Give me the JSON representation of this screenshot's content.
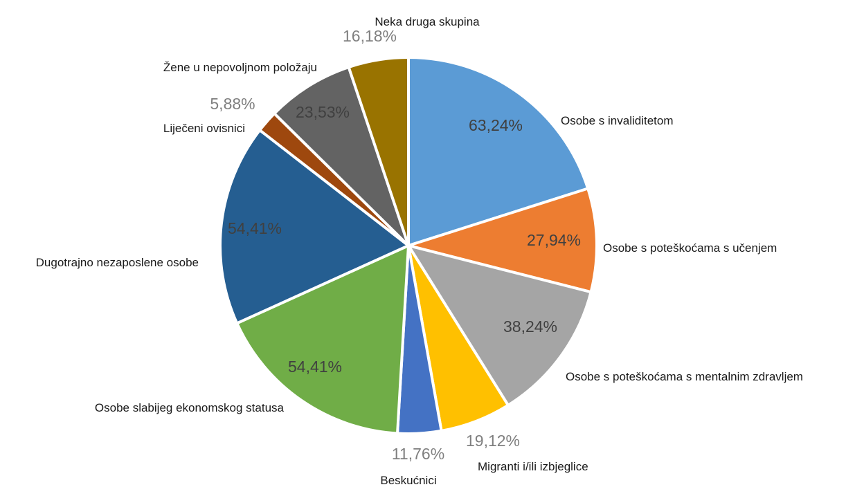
{
  "chart_data": {
    "type": "pie",
    "title": "",
    "slices": [
      {
        "label": "Osobe s invaliditetom",
        "value": 63.24,
        "display": "63,24%",
        "color": "#5b9bd5"
      },
      {
        "label": "Osobe s poteškoćama s učenjem",
        "value": 27.94,
        "display": "27,94%",
        "color": "#ed7d31"
      },
      {
        "label": "Osobe s poteškoćama s mentalnim zdravljem",
        "value": 38.24,
        "display": "38,24%",
        "color": "#a5a5a5"
      },
      {
        "label": "Migranti i/ili izbjeglice",
        "value": 19.12,
        "display": "19,12%",
        "color": "#ffc000"
      },
      {
        "label": "Beskućnici",
        "value": 11.76,
        "display": "11,76%",
        "color": "#4472c4"
      },
      {
        "label": "Osobe slabijeg ekonomskog statusa",
        "value": 54.41,
        "display": "54,41%",
        "color": "#70ad47"
      },
      {
        "label": "Dugotrajno nezaposlene osobe",
        "value": 54.41,
        "display": "54,41%",
        "color": "#255e91"
      },
      {
        "label": "Liječeni ovisnici",
        "value": 5.88,
        "display": "5,88%",
        "color": "#9e480e"
      },
      {
        "label": "Žene u nepovoljnom položaju",
        "value": 23.53,
        "display": "23,53%",
        "color": "#636363"
      },
      {
        "label": "Neka druga skupina",
        "value": 16.18,
        "display": "16,18%",
        "color": "#997300"
      }
    ]
  }
}
